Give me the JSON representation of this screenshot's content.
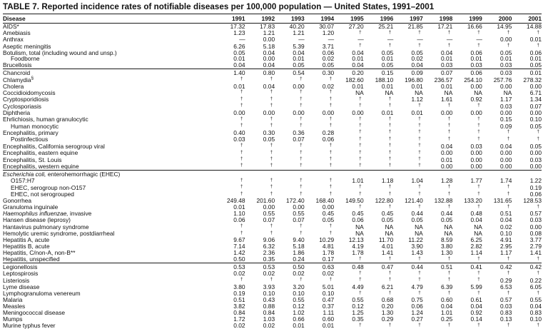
{
  "colors": {
    "background": "#ffffff",
    "text": "#111111",
    "rule": "#1a1a1a"
  },
  "symbols": {
    "not_notifiable_marker": "†",
    "no_cases_marker": "—",
    "not_available": "NA"
  },
  "table": {
    "title": "TABLE 7. Reported incidence rates of notifiable diseases per 100,000 population — United States, 1991–2001",
    "columns": [
      "Disease",
      "1991",
      "1992",
      "1993",
      "1994",
      "1995",
      "1996",
      "1997",
      "1998",
      "1999",
      "2000",
      "2001"
    ],
    "sections": [
      {
        "rows": [
          {
            "label": "AIDS*",
            "values": [
              "17.32",
              "17.83",
              "40.20",
              "30.07",
              "27.20",
              "25.21",
              "21.85",
              "17.21",
              "16.66",
              "14.95",
              "14.88"
            ]
          },
          {
            "label": "Amebiasis",
            "values": [
              "1.23",
              "1.21",
              "1.21",
              "1.20",
              "†",
              "†",
              "†",
              "†",
              "†",
              "†",
              "†"
            ]
          },
          {
            "label": "Anthrax",
            "values": [
              "—",
              "0.00",
              "—",
              "—",
              "—",
              "—",
              "—",
              "—",
              "—",
              "0.00",
              "0.01"
            ]
          },
          {
            "label": "Aseptic meningitis",
            "values": [
              "6.26",
              "5.18",
              "5.39",
              "3.71",
              "†",
              "†",
              "†",
              "†",
              "†",
              "†",
              "†"
            ]
          },
          {
            "label": "Botulism, total (including wound and unsp.)",
            "values": [
              "0.05",
              "0.04",
              "0.04",
              "0.06",
              "0.04",
              "0.05",
              "0.05",
              "0.04",
              "0.06",
              "0.05",
              "0.06"
            ]
          },
          {
            "label": "Foodborne",
            "indent": true,
            "values": [
              "0.01",
              "0.00",
              "0.01",
              "0.02",
              "0.01",
              "0.01",
              "0.02",
              "0.01",
              "0.01",
              "0.01",
              "0.01"
            ]
          },
          {
            "label": "Brucellosis",
            "values": [
              "0.04",
              "0.04",
              "0.05",
              "0.05",
              "0.04",
              "0.05",
              "0.04",
              "0.03",
              "0.03",
              "0.03",
              "0.05"
            ]
          }
        ]
      },
      {
        "rows": [
          {
            "label": "Chancroid",
            "values": [
              "1.40",
              "0.80",
              "0.54",
              "0.30",
              "0.20",
              "0.15",
              "0.09",
              "0.07",
              "0.06",
              "0.03",
              "0.01"
            ]
          },
          {
            "label": "Chlamydia",
            "sup": "§",
            "values": [
              "†",
              "†",
              "†",
              "†",
              "182.60",
              "188.10",
              "196.80",
              "236.57",
              "254.10",
              "257.76",
              "278.32"
            ]
          },
          {
            "label": "Cholera",
            "values": [
              "0.01",
              "0.04",
              "0.00",
              "0.02",
              "0.01",
              "0.01",
              "0.01",
              "0.01",
              "0.00",
              "0.00",
              "0.00"
            ]
          },
          {
            "label": "Coccidioidomycosis",
            "values": [
              "†",
              "†",
              "†",
              "†",
              "NA",
              "NA",
              "NA",
              "NA",
              "NA",
              "NA",
              "6.71"
            ]
          },
          {
            "label": "Cryptosporidiosis",
            "values": [
              "†",
              "†",
              "†",
              "†",
              "†",
              "†",
              "1.12",
              "1.61",
              "0.92",
              "1.17",
              "1.34"
            ]
          },
          {
            "label": "Cyclosporiasis",
            "values": [
              "†",
              "†",
              "†",
              "†",
              "†",
              "†",
              "†",
              "†",
              "†",
              "0.03",
              "0.07"
            ]
          },
          {
            "label": "Diphtheria",
            "values": [
              "0.00",
              "0.00",
              "0.00",
              "0.00",
              "0.00",
              "0.01",
              "0.01",
              "0.00",
              "0.00",
              "0.00",
              "0.00"
            ]
          },
          {
            "label": "Ehrlichiosis, human granulocytic",
            "values": [
              "†",
              "†",
              "†",
              "†",
              "†",
              "†",
              "†",
              "†",
              "†",
              "0.15",
              "0.10"
            ]
          },
          {
            "label": "Human monocytic",
            "indent": true,
            "values": [
              "†",
              "†",
              "†",
              "†",
              "†",
              "†",
              "†",
              "†",
              "†",
              "0.09",
              "0.05"
            ]
          },
          {
            "label": "Encephalitis, primary",
            "values": [
              "0.40",
              "0.30",
              "0.36",
              "0.28",
              "†",
              "†",
              "†",
              "†",
              "†",
              "†",
              "†"
            ]
          },
          {
            "label": "Postinfectious",
            "indent": true,
            "values": [
              "0.03",
              "0.05",
              "0.07",
              "0.06",
              "†",
              "†",
              "†",
              "†",
              "†",
              "†",
              "†"
            ]
          },
          {
            "label": "Encephalitis, California serogroup viral",
            "values": [
              "†",
              "†",
              "†",
              "†",
              "†",
              "†",
              "†",
              "0.04",
              "0.03",
              "0.04",
              "0.05"
            ]
          },
          {
            "label": "Encephalitis, eastern equine",
            "values": [
              "†",
              "†",
              "†",
              "†",
              "†",
              "†",
              "†",
              "0.00",
              "0.00",
              "0.00",
              "0.00"
            ]
          },
          {
            "label": "Encephalitis, St. Louis",
            "values": [
              "†",
              "†",
              "†",
              "†",
              "†",
              "†",
              "†",
              "0.01",
              "0.00",
              "0.00",
              "0.03"
            ]
          },
          {
            "label": "Encephalitis, western equine",
            "values": [
              "†",
              "†",
              "†",
              "†",
              "†",
              "†",
              "†",
              "0.00",
              "0.00",
              "0.00",
              "0.00"
            ]
          }
        ]
      },
      {
        "rows": [
          {
            "label_italic": "Escherichia coli,",
            "label": " enterohemorrhagic (EHEC)",
            "values": [
              "",
              "",
              "",
              "",
              "",
              "",
              "",
              "",
              "",
              "",
              ""
            ]
          },
          {
            "label": "O157:H7",
            "indent": true,
            "values": [
              "†",
              "†",
              "†",
              "†",
              "1.01",
              "1.18",
              "1.04",
              "1.28",
              "1.77",
              "1.74",
              "1.22"
            ]
          },
          {
            "label": "EHEC, serogroup non-O157",
            "indent": true,
            "values": [
              "†",
              "†",
              "†",
              "†",
              "†",
              "†",
              "†",
              "†",
              "†",
              "†",
              "0.19"
            ]
          },
          {
            "label": "EHEC, not serogrouped",
            "indent": true,
            "values": [
              "†",
              "†",
              "†",
              "†",
              "†",
              "†",
              "†",
              "†",
              "†",
              "†",
              "0.06"
            ]
          },
          {
            "label": "Gonorrhea",
            "values": [
              "249.48",
              "201.60",
              "172.40",
              "168.40",
              "149.50",
              "122.80",
              "121.40",
              "132.88",
              "133.20",
              "131.65",
              "128.53"
            ]
          },
          {
            "label": "Granuloma inguinale",
            "values": [
              "0.01",
              "0.00",
              "0.00",
              "0.00",
              "†",
              "†",
              "†",
              "†",
              "†",
              "†",
              "†"
            ]
          },
          {
            "label_italic": "Haemophilus influenzae,",
            "label": " invasive",
            "values": [
              "1.10",
              "0.55",
              "0.55",
              "0.45",
              "0.45",
              "0.45",
              "0.44",
              "0.44",
              "0.48",
              "0.51",
              "0.57"
            ]
          },
          {
            "label": "Hansen disease (leprosy)",
            "values": [
              "0.06",
              "0.07",
              "0.07",
              "0.05",
              "0.06",
              "0.05",
              "0.05",
              "0.05",
              "0.04",
              "0.04",
              "0.03"
            ]
          },
          {
            "label": "Hantavirus pulmonary syndrome",
            "values": [
              "†",
              "†",
              "†",
              "†",
              "NA",
              "NA",
              "NA",
              "NA",
              "NA",
              "0.02",
              "0.00"
            ]
          },
          {
            "label": "Hemolytic uremic syndrome, postdiarrheal",
            "values": [
              "†",
              "†",
              "†",
              "†",
              "NA",
              "NA",
              "NA",
              "NA",
              "NA",
              "0.10",
              "0.08"
            ]
          },
          {
            "label": "Hepatitis A, acute",
            "values": [
              "9.67",
              "9.06",
              "9.40",
              "10.29",
              "12.13",
              "11.70",
              "11.22",
              "8.59",
              "6.25",
              "4.91",
              "3.77"
            ]
          },
          {
            "label": "Hepatitis B, acute",
            "values": [
              "7.14",
              "6.32",
              "5.18",
              "4.81",
              "4.19",
              "4.01",
              "3.90",
              "3.80",
              "2.82",
              "2.95",
              "2.79"
            ]
          },
          {
            "label": "Hepatitis, C/non-A, non-B**",
            "values": [
              "1.42",
              "2.36",
              "1.86",
              "1.78",
              "1.78",
              "1.41",
              "1.43",
              "1.30",
              "1.14",
              "1.17",
              "1.41"
            ]
          },
          {
            "label": "Hepatitis, unspecified",
            "values": [
              "0.50",
              "0.35",
              "0.24",
              "0.17",
              "†",
              "†",
              "†",
              "†",
              "†",
              "†",
              "†"
            ]
          }
        ]
      },
      {
        "rows": [
          {
            "label": "Legionellosis",
            "values": [
              "0.53",
              "0.53",
              "0.50",
              "0.63",
              "0.48",
              "0.47",
              "0.44",
              "0.51",
              "0.41",
              "0.42",
              "0.42"
            ]
          },
          {
            "label": "Leptospirosis",
            "values": [
              "0.02",
              "0.02",
              "0.02",
              "0.02",
              "†",
              "†",
              "†",
              "†",
              "†",
              "†",
              "†"
            ]
          },
          {
            "label": "Listeriosis",
            "values": [
              "†",
              "†",
              "†",
              "†",
              "†",
              "†",
              "†",
              "†",
              "†",
              "0.29",
              "0.22"
            ]
          },
          {
            "label": "Lyme disease",
            "values": [
              "3.80",
              "3.93",
              "3.20",
              "5.01",
              "4.49",
              "6.21",
              "4.79",
              "6.39",
              "5.99",
              "6.53",
              "6.05"
            ]
          },
          {
            "label": "Lymphogranuloma venereum",
            "values": [
              "0.19",
              "0.10",
              "0.10",
              "0.10",
              "†",
              "†",
              "†",
              "†",
              "†",
              "†",
              "†"
            ]
          },
          {
            "label": "Malaria",
            "values": [
              "0.51",
              "0.43",
              "0.55",
              "0.47",
              "0.55",
              "0.68",
              "0.75",
              "0.60",
              "0.61",
              "0.57",
              "0.55"
            ]
          },
          {
            "label": "Measles",
            "values": [
              "3.82",
              "0.88",
              "0.12",
              "0.37",
              "0.12",
              "0.20",
              "0.06",
              "0.04",
              "0.04",
              "0.03",
              "0.04"
            ]
          },
          {
            "label": "Meningococcal disease",
            "values": [
              "0.84",
              "0.84",
              "1.02",
              "1.11",
              "1.25",
              "1.30",
              "1.24",
              "1.01",
              "0.92",
              "0.83",
              "0.83"
            ]
          },
          {
            "label": "Mumps",
            "values": [
              "1.72",
              "1.03",
              "0.66",
              "0.60",
              "0.35",
              "0.29",
              "0.27",
              "0.25",
              "0.14",
              "0.13",
              "0.10"
            ]
          },
          {
            "label": "Murine typhus fever",
            "values": [
              "0.02",
              "0.02",
              "0.01",
              "0.01",
              "†",
              "†",
              "†",
              "†",
              "†",
              "†",
              "†"
            ]
          }
        ]
      }
    ]
  }
}
